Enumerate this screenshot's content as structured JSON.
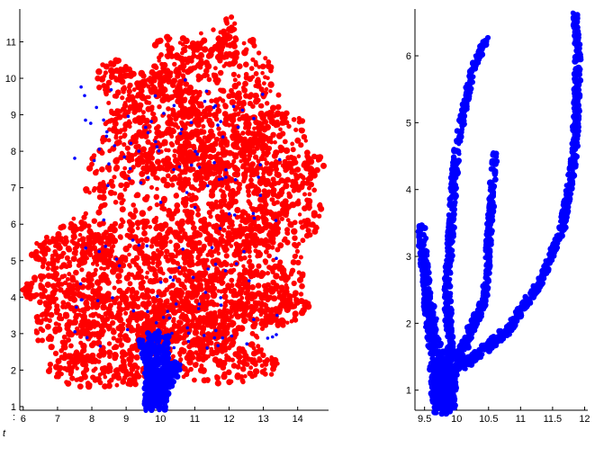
{
  "chart_data": [
    {
      "type": "scatter",
      "title": "",
      "xlabel": "",
      "ylabel": "",
      "xlim": [
        5.9,
        14.9
      ],
      "ylim": [
        0.9,
        11.9
      ],
      "xticks": [
        "6",
        "7",
        "8",
        "9",
        "10",
        "11",
        "12",
        "13",
        "14"
      ],
      "yticks": [
        "1",
        "2",
        "3",
        "4",
        "5",
        "6",
        "7",
        "8",
        "9",
        "10",
        "11"
      ],
      "grid": false,
      "legend": "none",
      "series": [
        {
          "color": "#0000ff",
          "marker": "filled dot",
          "description_points": [
            [
              9.7,
              1.0
            ],
            [
              9.8,
              1.8
            ],
            [
              9.9,
              2.6
            ],
            [
              10.0,
              1.3
            ],
            [
              10.1,
              2.2
            ],
            [
              10.3,
              1.6
            ],
            [
              9.6,
              2.9
            ],
            [
              10.2,
              2.9
            ],
            [
              9.9,
              3.6
            ],
            [
              10.4,
              3.2
            ]
          ]
        },
        {
          "color": "#ff0000",
          "marker": "filled dot",
          "description_points": [
            [
              6.0,
              4.3
            ],
            [
              7.0,
              2.0
            ],
            [
              8.0,
              3.5
            ],
            [
              9.0,
              6.0
            ],
            [
              10.0,
              8.0
            ],
            [
              11.0,
              9.5
            ],
            [
              12.0,
              11.7
            ],
            [
              13.0,
              6.0
            ],
            [
              14.0,
              4.5
            ],
            [
              14.6,
              7.8
            ]
          ]
        }
      ]
    },
    {
      "type": "scatter",
      "title": "",
      "xlabel": "",
      "ylabel": "",
      "xlim": [
        9.35,
        12.05
      ],
      "ylim": [
        0.7,
        6.7
      ],
      "xticks": [
        "9.5",
        "10",
        "10.5",
        "11",
        "11.5",
        "12"
      ],
      "yticks": [
        "1",
        "2",
        "3",
        "4",
        "5",
        "6"
      ],
      "grid": false,
      "legend": "none",
      "series": [
        {
          "color": "#0000ff",
          "marker": "filled dot",
          "description_points": [
            [
              9.8,
              0.7
            ],
            [
              10.0,
              1.2
            ],
            [
              9.6,
              2.0
            ],
            [
              9.4,
              3.4
            ],
            [
              9.8,
              3.0
            ],
            [
              10.0,
              4.6
            ],
            [
              10.4,
              6.2
            ],
            [
              10.5,
              3.0
            ],
            [
              10.6,
              4.5
            ],
            [
              11.2,
              2.3
            ],
            [
              11.7,
              4.0
            ],
            [
              11.9,
              6.6
            ]
          ]
        }
      ]
    }
  ],
  "fragments": {
    "left_edge_mark": ":",
    "bottom_left_mark": "t"
  }
}
